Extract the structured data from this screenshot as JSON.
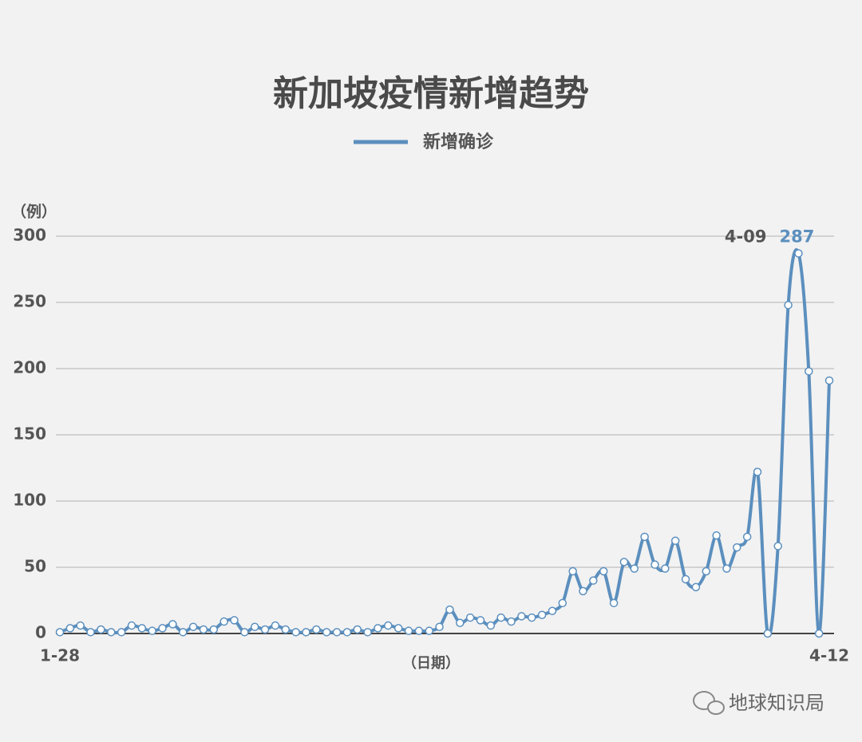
{
  "chart_data": {
    "type": "line",
    "title": "新加坡疫情新增趋势",
    "y_label": "（例）",
    "x_label": "（日期）",
    "categories": [
      "1-28",
      null,
      null,
      null,
      null,
      null,
      null,
      null,
      null,
      null,
      null,
      null,
      null,
      null,
      null,
      null,
      null,
      null,
      null,
      null,
      null,
      null,
      null,
      null,
      null,
      null,
      null,
      null,
      null,
      null,
      null,
      null,
      null,
      null,
      null,
      null,
      null,
      null,
      null,
      null,
      null,
      null,
      null,
      null,
      null,
      null,
      null,
      null,
      null,
      null,
      null,
      null,
      null,
      null,
      null,
      null,
      null,
      null,
      null,
      null,
      null,
      null,
      null,
      null,
      null,
      null,
      null,
      null,
      null,
      null,
      null,
      null,
      "4-09",
      null,
      null,
      "4-12"
    ],
    "series": [
      {
        "name": "新增确诊",
        "color": "#5b8fbe",
        "values": [
          1,
          4,
          6,
          1,
          3,
          1,
          1,
          6,
          4,
          2,
          4,
          7,
          1,
          5,
          3,
          3,
          9,
          10,
          1,
          5,
          3,
          6,
          3,
          1,
          1,
          3,
          1,
          1,
          1,
          3,
          1,
          4,
          6,
          4,
          2,
          2,
          2,
          5,
          18,
          8,
          12,
          10,
          6,
          12,
          9,
          13,
          12,
          14,
          17,
          23,
          47,
          32,
          40,
          47,
          23,
          54,
          49,
          73,
          52,
          49,
          70,
          41,
          35,
          47,
          74,
          49,
          65,
          73,
          122,
          0,
          66,
          248,
          287,
          198,
          0,
          191
        ]
      }
    ],
    "ylim": [
      0,
      300
    ],
    "yticks": [
      0,
      50,
      100,
      150,
      200,
      250,
      300
    ],
    "grid": true
  },
  "watermark": "地球知识局"
}
